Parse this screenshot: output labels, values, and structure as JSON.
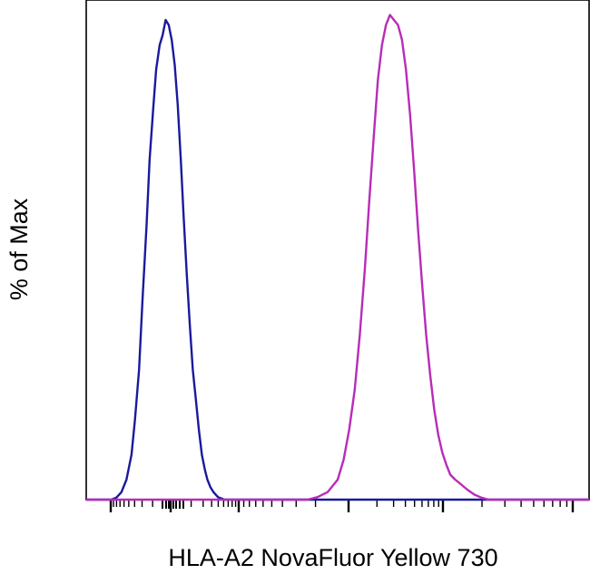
{
  "chart_data": {
    "type": "line",
    "title": "",
    "xlabel": "HLA-A2 NovaFluor Yellow 730",
    "ylabel": "% of Max",
    "xscale": "biexponential",
    "xlim": [
      0,
      1
    ],
    "ylim": [
      0,
      100
    ],
    "grid": false,
    "legend": "none",
    "tick_labels": [],
    "series": [
      {
        "color": "#1a1a9c",
        "x": [
          0.0,
          0.05,
          0.06,
          0.07,
          0.08,
          0.09,
          0.097,
          0.105,
          0.112,
          0.12,
          0.126,
          0.133,
          0.139,
          0.146,
          0.152,
          0.158,
          0.164,
          0.17,
          0.176,
          0.182,
          0.188,
          0.194,
          0.2,
          0.206,
          0.212,
          0.218,
          0.224,
          0.23,
          0.236,
          0.241,
          0.247,
          0.253,
          0.262,
          0.275,
          1.0
        ],
        "y": [
          0,
          0,
          0.4,
          1.5,
          4,
          9,
          16,
          26,
          40,
          55,
          68,
          78,
          86,
          91,
          93,
          96,
          95,
          92,
          87,
          79,
          68,
          56,
          45,
          35,
          26,
          20,
          14,
          9,
          6,
          4,
          2.5,
          1.5,
          0.5,
          0,
          0
        ]
      },
      {
        "color": "#b82cb8",
        "x": [
          0.0,
          0.44,
          0.46,
          0.48,
          0.5,
          0.512,
          0.523,
          0.534,
          0.544,
          0.554,
          0.563,
          0.572,
          0.58,
          0.588,
          0.596,
          0.604,
          0.612,
          0.62,
          0.628,
          0.636,
          0.644,
          0.652,
          0.66,
          0.668,
          0.676,
          0.684,
          0.692,
          0.7,
          0.708,
          0.716,
          0.724,
          0.734,
          0.746,
          0.758,
          0.772,
          0.786,
          0.8,
          1.0
        ],
        "y": [
          0,
          0,
          0.5,
          1.5,
          4,
          8,
          14,
          22,
          33,
          46,
          60,
          73,
          84,
          91,
          95,
          97,
          96,
          95,
          92,
          86,
          77,
          66,
          54,
          43,
          33,
          25,
          18,
          13,
          9.5,
          7,
          5,
          4,
          3,
          2,
          1,
          0.4,
          0,
          0
        ]
      }
    ]
  }
}
